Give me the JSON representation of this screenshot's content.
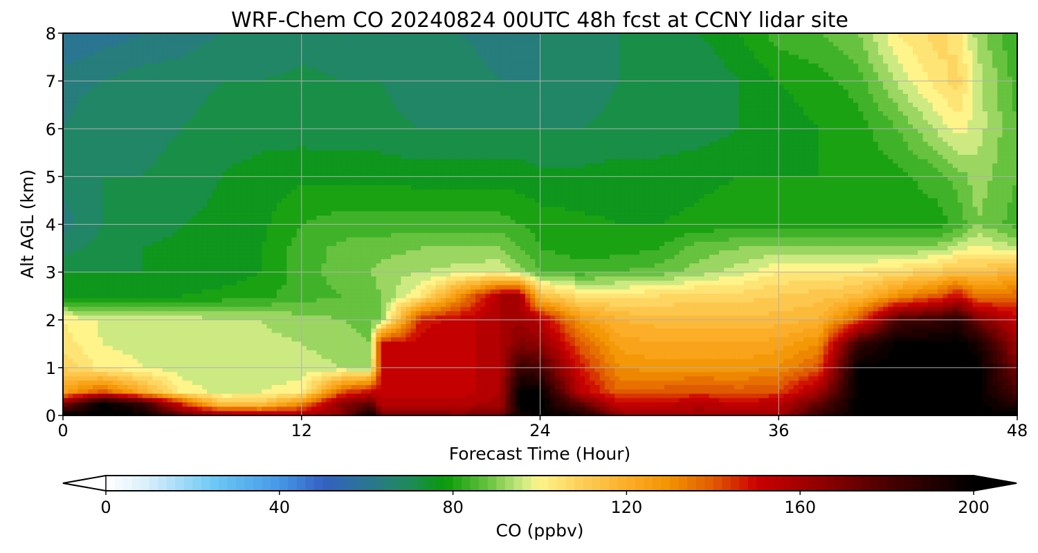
{
  "chart_data": {
    "type": "heatmap",
    "title": "WRF-Chem CO  20240824 00UTC 48h fcst at CCNY lidar site",
    "xlabel": "Forecast Time (Hour)",
    "ylabel": "Alt AGL (km)",
    "xlim": [
      0,
      48
    ],
    "ylim": [
      0,
      8
    ],
    "x_ticks": [
      "0",
      "12",
      "24",
      "36",
      "48"
    ],
    "y_ticks": [
      "0",
      "1",
      "2",
      "3",
      "4",
      "5",
      "6",
      "7",
      "8"
    ],
    "grid": true,
    "colorbar": {
      "label": "CO  (ppbv)",
      "range": [
        0,
        200
      ],
      "extend": "both",
      "ticks": [
        "0",
        "40",
        "80",
        "120",
        "160",
        "200"
      ],
      "stops": [
        {
          "value": 0,
          "color": "#ffffff"
        },
        {
          "value": 10,
          "color": "#d6eefb"
        },
        {
          "value": 25,
          "color": "#6cc8f4"
        },
        {
          "value": 40,
          "color": "#4599e6"
        },
        {
          "value": 50,
          "color": "#3460c2"
        },
        {
          "value": 60,
          "color": "#2a7592"
        },
        {
          "value": 70,
          "color": "#1f8a5a"
        },
        {
          "value": 78,
          "color": "#089a08"
        },
        {
          "value": 88,
          "color": "#66c23f"
        },
        {
          "value": 96,
          "color": "#cdea82"
        },
        {
          "value": 100,
          "color": "#fff48a"
        },
        {
          "value": 110,
          "color": "#fccd55"
        },
        {
          "value": 120,
          "color": "#fcae29"
        },
        {
          "value": 130,
          "color": "#f29200"
        },
        {
          "value": 140,
          "color": "#e05a00"
        },
        {
          "value": 150,
          "color": "#cc0000"
        },
        {
          "value": 165,
          "color": "#900000"
        },
        {
          "value": 180,
          "color": "#4a0000"
        },
        {
          "value": 200,
          "color": "#000000"
        }
      ]
    },
    "times": [
      0,
      2,
      4,
      6,
      8,
      10,
      12,
      14,
      15.5,
      16,
      18,
      20,
      22,
      23,
      24,
      26,
      28,
      30,
      32,
      34,
      36,
      38,
      40,
      42,
      44,
      45,
      46,
      48
    ],
    "altitudes": [
      0,
      0.25,
      0.5,
      1,
      1.5,
      2,
      2.5,
      3,
      3.5,
      4,
      5,
      6,
      7,
      8
    ],
    "values": [
      [
        200,
        200,
        200,
        175,
        165,
        160,
        160,
        165,
        200,
        170,
        170,
        168,
        172,
        195,
        200,
        195,
        165,
        162,
        162,
        160,
        160,
        185,
        200,
        200,
        200,
        200,
        200,
        200
      ],
      [
        165,
        200,
        185,
        145,
        110,
        112,
        130,
        165,
        175,
        155,
        155,
        155,
        160,
        200,
        200,
        175,
        150,
        152,
        155,
        152,
        155,
        175,
        200,
        200,
        200,
        200,
        200,
        190
      ],
      [
        125,
        140,
        120,
        100,
        97,
        98,
        100,
        140,
        150,
        152,
        152,
        152,
        158,
        200,
        200,
        155,
        138,
        140,
        142,
        140,
        142,
        160,
        200,
        200,
        200,
        200,
        200,
        180
      ],
      [
        110,
        100,
        98,
        96,
        96,
        96,
        96,
        94,
        92,
        150,
        152,
        152,
        158,
        185,
        180,
        148,
        130,
        128,
        128,
        128,
        130,
        140,
        200,
        200,
        200,
        200,
        200,
        170
      ],
      [
        104,
        98,
        97,
        96,
        95,
        95,
        94,
        92,
        90,
        150,
        152,
        152,
        158,
        168,
        165,
        140,
        124,
        122,
        122,
        122,
        124,
        130,
        185,
        200,
        200,
        200,
        195,
        160
      ],
      [
        102,
        97,
        96,
        96,
        95,
        94,
        92,
        90,
        88,
        90,
        148,
        152,
        158,
        162,
        155,
        128,
        118,
        116,
        115,
        115,
        116,
        118,
        140,
        180,
        185,
        190,
        170,
        152
      ],
      [
        76,
        76,
        77,
        78,
        79,
        81,
        84,
        86,
        88,
        90,
        102,
        130,
        158,
        158,
        115,
        104,
        104,
        106,
        108,
        108,
        110,
        112,
        115,
        130,
        140,
        150,
        135,
        138
      ],
      [
        74,
        74,
        74,
        75,
        76,
        78,
        84,
        88,
        90,
        92,
        94,
        96,
        98,
        92,
        86,
        84,
        86,
        88,
        92,
        96,
        102,
        103,
        103,
        106,
        110,
        115,
        112,
        120
      ],
      [
        68,
        72,
        74,
        75,
        76,
        78,
        84,
        87,
        88,
        88,
        90,
        90,
        90,
        86,
        82,
        80,
        80,
        82,
        88,
        90,
        91,
        91,
        90,
        90,
        92,
        96,
        100,
        94
      ],
      [
        64,
        70,
        72,
        74,
        75,
        77,
        82,
        84,
        84,
        84,
        84,
        84,
        84,
        82,
        80,
        79,
        78,
        78,
        79,
        80,
        80,
        80,
        80,
        80,
        80,
        83,
        90,
        84
      ],
      [
        68,
        70,
        70,
        72,
        74,
        76,
        77,
        77,
        77,
        77,
        76,
        76,
        76,
        76,
        75,
        75,
        76,
        76,
        77,
        78,
        78,
        78,
        79,
        81,
        84,
        88,
        92,
        86
      ],
      [
        66,
        70,
        68,
        70,
        72,
        72,
        72,
        71,
        71,
        71,
        70,
        70,
        70,
        70,
        70,
        70,
        71,
        71,
        72,
        74,
        76,
        78,
        80,
        86,
        95,
        100,
        96,
        86
      ],
      [
        64,
        66,
        68,
        68,
        70,
        70,
        71,
        70,
        70,
        70,
        68,
        68,
        66,
        66,
        66,
        68,
        70,
        70,
        70,
        74,
        78,
        80,
        84,
        95,
        104,
        108,
        96,
        84
      ],
      [
        58,
        60,
        62,
        64,
        66,
        66,
        68,
        68,
        68,
        68,
        66,
        66,
        64,
        64,
        66,
        68,
        70,
        72,
        74,
        78,
        84,
        86,
        90,
        102,
        108,
        104,
        92,
        82
      ]
    ]
  }
}
